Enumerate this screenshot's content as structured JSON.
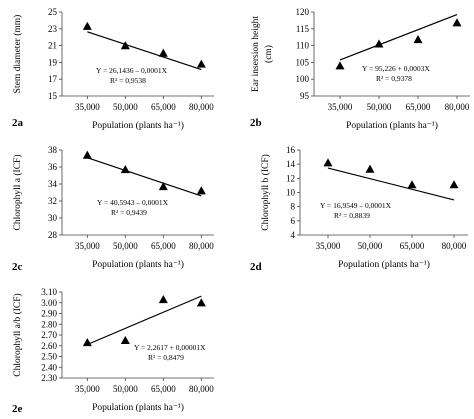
{
  "figure": {
    "colors": {
      "marker": "#000000",
      "line": "#000000",
      "axis": "#444444",
      "background": "#ffffff"
    }
  },
  "chart_data": [
    {
      "id": "a",
      "type": "scatter",
      "panel_label": "2a",
      "xlabel": "Population (plants ha⁻¹)",
      "ylabel": "Stem diameter (mm)",
      "x_ticks": [
        "35,000",
        "50,000",
        "65,000",
        "80,000"
      ],
      "y_ticks": [
        "15",
        "17",
        "19",
        "21",
        "23",
        "25"
      ],
      "x": [
        35000,
        50000,
        65000,
        80000
      ],
      "y": [
        23.3,
        21.0,
        20.1,
        18.8
      ],
      "xlim": [
        25000,
        85000
      ],
      "ylim": [
        15,
        25
      ],
      "trendline": {
        "intercept": 26.1436,
        "slope": -0.0001
      },
      "equation": "Y = 26,1436 – 0,0001X",
      "r2": "R² = 0,9538",
      "marker": "triangle",
      "legend": "none",
      "grid": false
    },
    {
      "id": "b",
      "type": "scatter",
      "panel_label": "2b",
      "xlabel": "Population (plants ha⁻¹)",
      "ylabel_lines": [
        "Ear insersion height",
        "(cm)"
      ],
      "x_ticks": [
        "35,000",
        "50,000",
        "65,000",
        "80,000"
      ],
      "y_ticks": [
        "95",
        "100",
        "105",
        "110",
        "115",
        "120"
      ],
      "x": [
        35000,
        50000,
        65000,
        80000
      ],
      "y": [
        104.0,
        110.5,
        111.8,
        116.8
      ],
      "xlim": [
        25000,
        85000
      ],
      "ylim": [
        95,
        120
      ],
      "trendline": {
        "intercept": 95.226,
        "slope": 0.0003
      },
      "equation": "Y = 95,226 + 0,0003X",
      "r2": "R² = 0,9378",
      "marker": "triangle",
      "legend": "none",
      "grid": false
    },
    {
      "id": "c",
      "type": "scatter",
      "panel_label": "2c",
      "xlabel": "Population (plants ha⁻¹)",
      "ylabel": "Chlorophyll a (ICF)",
      "x_ticks": [
        "35,000",
        "50,000",
        "65,000",
        "80,000"
      ],
      "y_ticks": [
        "28",
        "30",
        "32",
        "34",
        "36",
        "38"
      ],
      "x": [
        35000,
        50000,
        65000,
        80000
      ],
      "y": [
        37.4,
        35.7,
        33.7,
        33.2
      ],
      "xlim": [
        25000,
        85000
      ],
      "ylim": [
        28,
        38
      ],
      "trendline": {
        "intercept": 40.5943,
        "slope": -0.0001
      },
      "equation": "Y = 40,5943 – 0,0001X",
      "r2": "R² = 0,9439",
      "marker": "triangle",
      "legend": "none",
      "grid": false
    },
    {
      "id": "d",
      "type": "scatter",
      "panel_label": "2d",
      "xlabel": "Population (plants ha⁻¹)",
      "ylabel": "Chlorophyll b (ICF)",
      "x_ticks": [
        "35,000",
        "50,000",
        "65,000",
        "80,000"
      ],
      "y_ticks": [
        "4",
        "6",
        "8",
        "10",
        "12",
        "14",
        "16"
      ],
      "x": [
        35000,
        50000,
        65000,
        80000
      ],
      "y": [
        14.2,
        13.3,
        11.1,
        11.1
      ],
      "xlim": [
        25000,
        85000
      ],
      "ylim": [
        4,
        16
      ],
      "trendline": {
        "intercept": 16.9549,
        "slope": -0.0001
      },
      "equation": "Y = 16,9549 – 0,0001X",
      "r2": "R² = 0,8839",
      "marker": "triangle",
      "legend": "none",
      "grid": false
    },
    {
      "id": "e",
      "type": "scatter",
      "panel_label": "2e",
      "xlabel": "Population (plants ha⁻¹)",
      "ylabel": "Chlorophyll a/b (ICF)",
      "x_ticks": [
        "35,000",
        "50,000",
        "65,000",
        "80,000"
      ],
      "y_ticks": [
        "2.30",
        "2.40",
        "2.50",
        "2.60",
        "2.70",
        "2.80",
        "2.90",
        "3.00",
        "3.10"
      ],
      "x": [
        35000,
        50000,
        65000,
        80000
      ],
      "y": [
        2.63,
        2.65,
        3.03,
        3.0
      ],
      "xlim": [
        25000,
        85000
      ],
      "ylim": [
        2.3,
        3.1
      ],
      "trendline": {
        "intercept": 2.2617,
        "slope": 1e-05
      },
      "equation": "Y = 2,2617 + 0,00001X",
      "r2": "R² = 0,8479",
      "marker": "triangle",
      "legend": "none",
      "grid": false
    }
  ]
}
